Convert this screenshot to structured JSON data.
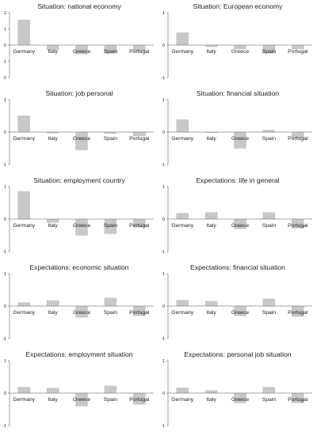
{
  "colors": {
    "bar": "#c8c8c8",
    "bar_stroke": "#b4b4b4",
    "axis": "#8a8a8a",
    "text": "#222222"
  },
  "chart_data": [
    {
      "type": "bar",
      "title": "Situation: national economy",
      "categories": [
        "Germany",
        "Italy",
        "Greece",
        "Spain",
        "Portugal"
      ],
      "values": [
        1.55,
        -0.3,
        -0.55,
        -0.5,
        -0.35
      ],
      "ylim": [
        -2,
        2
      ],
      "yticks": [
        "2",
        "1",
        "0",
        "-1",
        "-2"
      ]
    },
    {
      "type": "bar",
      "title": "Situation: European economy",
      "categories": [
        "Germany",
        "Italy",
        "Greece",
        "Spain",
        "Portugal"
      ],
      "values": [
        0.38,
        -0.05,
        -0.12,
        -0.25,
        -0.12
      ],
      "ylim": [
        -1,
        1
      ],
      "yticks": [
        "1",
        "0",
        "-1"
      ]
    },
    {
      "type": "bar",
      "title": "Situation: job personal",
      "categories": [
        "Germany",
        "Italy",
        "Greece",
        "Spain",
        "Portugal"
      ],
      "values": [
        0.5,
        -0.03,
        -0.55,
        -0.04,
        -0.12
      ],
      "ylim": [
        -1,
        1
      ],
      "yticks": [
        "1",
        "0",
        "-1"
      ]
    },
    {
      "type": "bar",
      "title": "Situation: financial situation",
      "categories": [
        "Germany",
        "Italy",
        "Greece",
        "Spain",
        "Portugal"
      ],
      "values": [
        0.38,
        -0.02,
        -0.5,
        0.06,
        -0.18
      ],
      "ylim": [
        -1,
        1
      ],
      "yticks": [
        "1",
        "0",
        "-1"
      ]
    },
    {
      "type": "bar",
      "title": "Situation: employment country",
      "categories": [
        "Germany",
        "Italy",
        "Greece",
        "Spain",
        "Portugal"
      ],
      "values": [
        0.85,
        -0.1,
        -0.5,
        -0.45,
        -0.25
      ],
      "ylim": [
        -1,
        1
      ],
      "yticks": [
        "1",
        "0",
        "-1"
      ]
    },
    {
      "type": "bar",
      "title": "Expectations: life in general",
      "categories": [
        "Germany",
        "Italy",
        "Greece",
        "Spain",
        "Portugal"
      ],
      "values": [
        0.18,
        0.2,
        -0.3,
        0.2,
        -0.28
      ],
      "ylim": [
        -1,
        1
      ],
      "yticks": [
        "1",
        "0",
        "-1"
      ]
    },
    {
      "type": "bar",
      "title": "Expectations: economic situation",
      "categories": [
        "Germany",
        "Italy",
        "Greece",
        "Spain",
        "Portugal"
      ],
      "values": [
        0.1,
        0.17,
        -0.35,
        0.25,
        -0.3
      ],
      "ylim": [
        -1,
        1
      ],
      "yticks": [
        "1",
        "0",
        "-1"
      ]
    },
    {
      "type": "bar",
      "title": "Expectations: financial situation",
      "categories": [
        "Germany",
        "Italy",
        "Greece",
        "Spain",
        "Portugal"
      ],
      "values": [
        0.18,
        0.15,
        -0.3,
        0.22,
        -0.32
      ],
      "ylim": [
        -1,
        1
      ],
      "yticks": [
        "1",
        "0",
        "-1"
      ]
    },
    {
      "type": "bar",
      "title": "Expectations: employment situation",
      "categories": [
        "Germany",
        "Italy",
        "Greece",
        "Spain",
        "Portugal"
      ],
      "values": [
        0.18,
        0.15,
        -0.4,
        0.22,
        -0.35
      ],
      "ylim": [
        -1,
        1
      ],
      "yticks": [
        "1",
        "0",
        "-1"
      ]
    },
    {
      "type": "bar",
      "title": "Expectations: personal job situation",
      "categories": [
        "Germany",
        "Italy",
        "Greece",
        "Spain",
        "Portugal"
      ],
      "values": [
        0.16,
        0.08,
        -0.3,
        0.18,
        -0.3
      ],
      "ylim": [
        -1,
        1
      ],
      "yticks": [
        "1",
        "0",
        "-1"
      ]
    }
  ]
}
